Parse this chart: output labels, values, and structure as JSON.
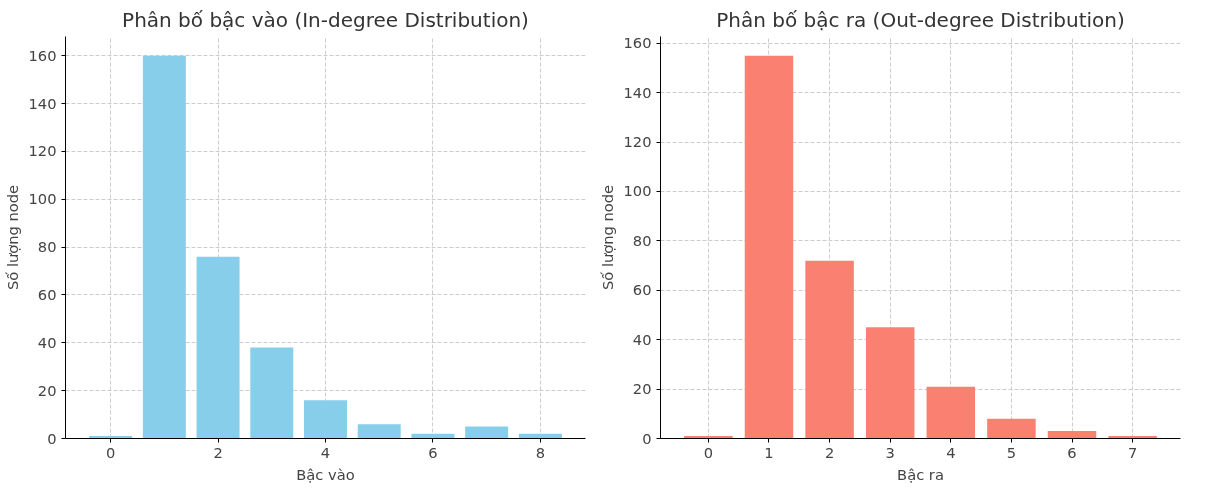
{
  "chart_data": [
    {
      "type": "bar",
      "title": "Phân bố bậc vào (In-degree Distribution)",
      "xlabel": "Bậc vào",
      "ylabel": "Số lượng node",
      "x": [
        0,
        1,
        2,
        3,
        4,
        5,
        6,
        7,
        8
      ],
      "values": [
        1,
        160,
        76,
        38,
        16,
        6,
        2,
        5,
        2
      ],
      "color": "#87ceeb",
      "xlim": [
        -0.84,
        8.84
      ],
      "xticks": [
        0,
        2,
        4,
        6,
        8
      ],
      "ylim": [
        0,
        168
      ],
      "yticks": [
        0,
        20,
        40,
        60,
        80,
        100,
        120,
        140,
        160
      ],
      "grid": true
    },
    {
      "type": "bar",
      "title": "Phân bố bậc ra (Out-degree Distribution)",
      "xlabel": "Bậc ra",
      "ylabel": "Số lượng node",
      "x": [
        0,
        1,
        2,
        3,
        4,
        5,
        6,
        7
      ],
      "values": [
        1,
        155,
        72,
        45,
        21,
        8,
        3,
        1
      ],
      "color": "#fa8072",
      "xlim": [
        -0.79,
        7.79
      ],
      "xticks": [
        0,
        1,
        2,
        3,
        4,
        5,
        6,
        7
      ],
      "ylim": [
        0,
        162.75
      ],
      "yticks": [
        0,
        20,
        40,
        60,
        80,
        100,
        120,
        140,
        160
      ],
      "grid": true
    }
  ]
}
